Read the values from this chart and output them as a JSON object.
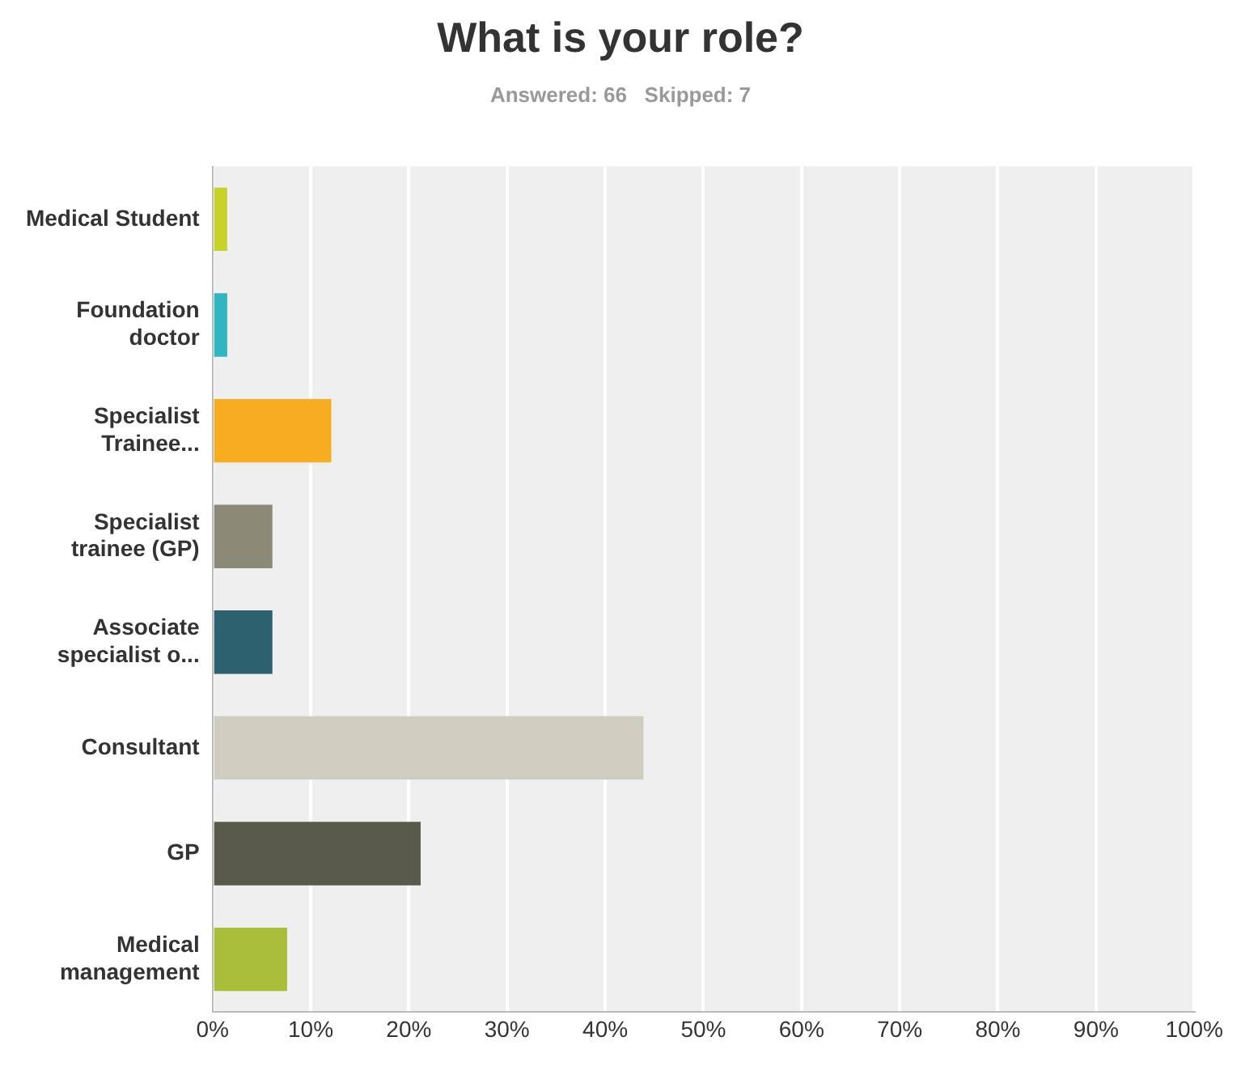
{
  "chart_data": {
    "type": "bar",
    "orientation": "horizontal",
    "title": "What is your role?",
    "subtitle": "Answered: 66   Skipped: 7",
    "categories": [
      "Medical Student",
      "Foundation doctor",
      "Specialist Trainee...",
      "Specialist trainee (GP)",
      "Associate specialist o...",
      "Consultant",
      "GP",
      "Medical management"
    ],
    "values": [
      1.5,
      1.5,
      12.1,
      6.1,
      6.1,
      43.9,
      21.2,
      7.6
    ],
    "colors": [
      "#c7d22a",
      "#2fb6c0",
      "#f7ad1f",
      "#8a8a76",
      "#2e6170",
      "#cfcdc0",
      "#5a5a4a",
      "#a9bd38"
    ],
    "xlim": [
      0,
      100
    ],
    "xticks": [
      {
        "value": 0,
        "label": "0%"
      },
      {
        "value": 10,
        "label": "10%"
      },
      {
        "value": 20,
        "label": "20%"
      },
      {
        "value": 30,
        "label": "30%"
      },
      {
        "value": 40,
        "label": "40%"
      },
      {
        "value": 50,
        "label": "50%"
      },
      {
        "value": 60,
        "label": "60%"
      },
      {
        "value": 70,
        "label": "70%"
      },
      {
        "value": 80,
        "label": "80%"
      },
      {
        "value": 90,
        "label": "90%"
      },
      {
        "value": 100,
        "label": "100%"
      }
    ],
    "grid": "x",
    "legend": false
  }
}
